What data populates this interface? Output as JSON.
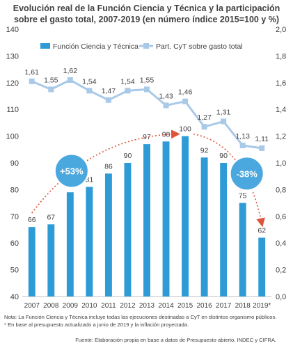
{
  "chart_data": {
    "type": "bar+line",
    "title_lines": [
      "Evolución real de la Función Ciencia y Técnica y la participación",
      "sobre el gasto total, 2007-2019 (en número índice 2015=100 y %)"
    ],
    "categories": [
      "2007",
      "2008",
      "2009",
      "2010",
      "2011",
      "2012",
      "2013",
      "2014",
      "2015",
      "2016",
      "2017",
      "2018",
      "2019*"
    ],
    "series": [
      {
        "name": "Función Ciencia y Técnica",
        "kind": "bar",
        "axis": "left",
        "values": [
          66,
          67,
          79,
          81,
          86,
          90,
          97,
          98,
          100,
          92,
          90,
          75,
          62
        ],
        "labels": [
          "66",
          "67",
          "79",
          "81",
          "86",
          "90",
          "97",
          "98",
          "100",
          "92",
          "90",
          "75",
          "62"
        ]
      },
      {
        "name": "Part. CyT sobre gasto total",
        "kind": "line",
        "axis": "right",
        "values": [
          1.61,
          1.55,
          1.62,
          1.54,
          1.47,
          1.54,
          1.55,
          1.43,
          1.46,
          1.27,
          1.31,
          1.13,
          1.11
        ],
        "labels": [
          "1,61",
          "1,55",
          "1,62",
          "1,54",
          "1,47",
          "1,54",
          "1,55",
          "1,43",
          "1,46",
          "1,27",
          "1,31",
          "1,13",
          "1,11"
        ]
      }
    ],
    "left_axis": {
      "min": 40,
      "max": 140,
      "ticks": [
        "40",
        "50",
        "60",
        "70",
        "80",
        "90",
        "100",
        "110",
        "120",
        "130",
        "140"
      ]
    },
    "right_axis": {
      "min": 0,
      "max": 2.0,
      "ticks": [
        "0,0",
        "0,2",
        "0,4",
        "0,6",
        "0,8",
        "1,0",
        "1,2",
        "1,4",
        "1,6",
        "1,8",
        "2,0"
      ]
    },
    "grid": false,
    "legend_position": "top",
    "annotations": [
      {
        "text": "+53%",
        "from": "2007",
        "to": "2015"
      },
      {
        "text": "-38%",
        "from": "2015",
        "to": "2019*"
      }
    ],
    "colors": {
      "bar": "#2E9BD6",
      "line": "#A9C9E8",
      "badge": "#4AA8DF",
      "arrow": "#E0533A"
    }
  },
  "notes": [
    "Nota: La Función Ciencia y Técnica incluye todas las ejecuciones destinadas a CyT en distintos organismo públicos.",
    "* En base al presupuesto actualizado a junio de 2019 y la inflación proyectada."
  ],
  "source": "Fuente: Elaboración propia en base a datos de Presupuesto abierto, INDEC y CIFRA."
}
